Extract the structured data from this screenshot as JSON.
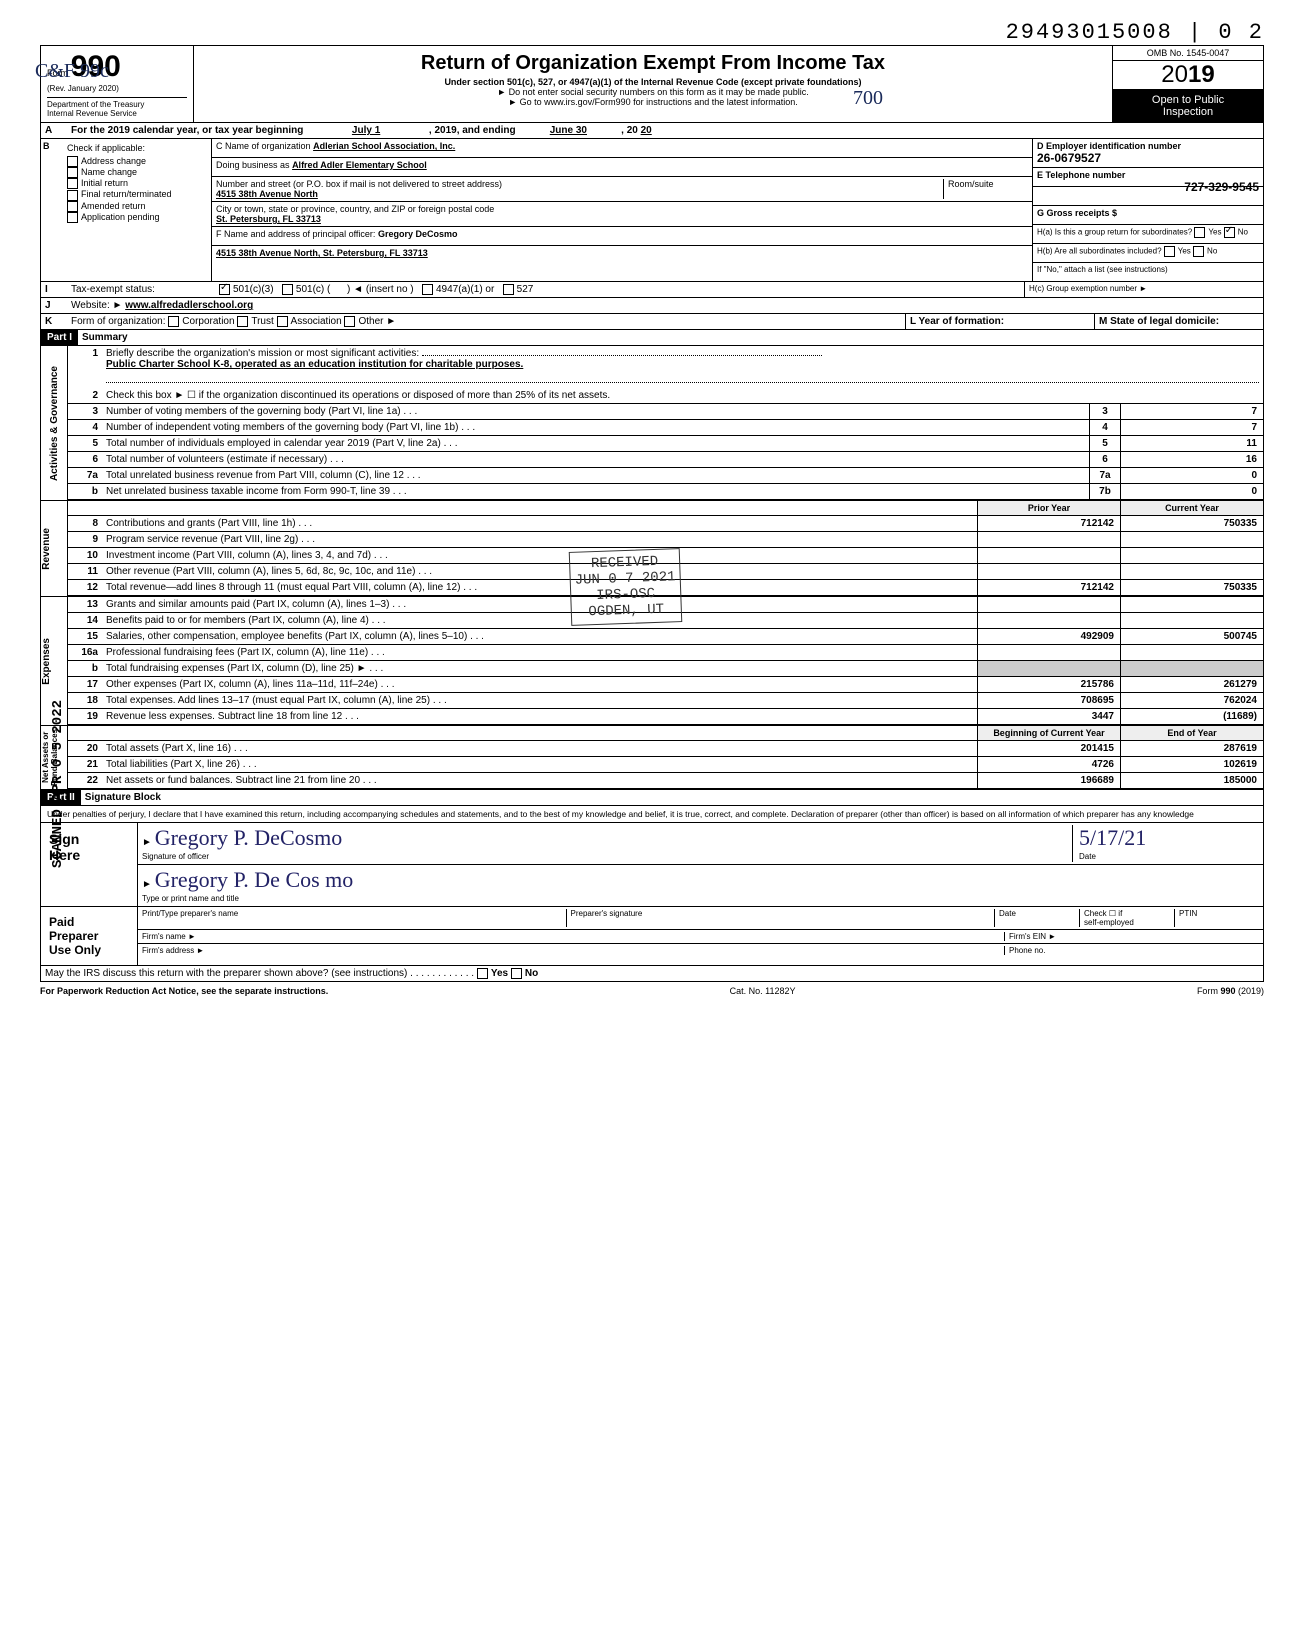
{
  "top_sequence": "29493015008 | 0  2",
  "margin_stamp": "SCANNED APR 0 5 2022",
  "handwritten_top_left": "C&F 99c",
  "form": {
    "number": "990",
    "prefix": "Form",
    "rev": "(Rev. January 2020)",
    "dept": "Department of the Treasury\nInternal Revenue Service",
    "title": "Return of Organization Exempt From Income Tax",
    "subtitle": "Under section 501(c), 527, or 4947(a)(1) of the Internal Revenue Code (except private foundations)",
    "note1": "► Do not enter social security numbers on this form as it may be made public.",
    "note2": "► Go to www.irs.gov/Form990 for instructions and the latest information.",
    "omb": "OMB No. 1545-0047",
    "year_prefix": "20",
    "year": "19",
    "open": "Open to Public\nInspection",
    "handwritten_note": "700"
  },
  "line_a": {
    "label": "For the 2019 calendar year, or tax year beginning",
    "begin": "July 1",
    "mid": ", 2019, and ending",
    "end": "June 30",
    "end2": ", 20",
    "end_year": "20"
  },
  "section_b": {
    "header": "Check if applicable:",
    "items": [
      "Address change",
      "Name change",
      "Initial return",
      "Final return/terminated",
      "Amended return",
      "Application pending"
    ]
  },
  "section_c": {
    "name_label": "C Name of organization",
    "name": "Adlerian School Association, Inc.",
    "dba_label": "Doing business as",
    "dba": "Alfred Adler Elementary School",
    "street_label": "Number and street (or P.O. box if mail is not delivered to street address)",
    "street": "4515 38th Avenue North",
    "room_label": "Room/suite",
    "city_label": "City or town, state or province, country, and ZIP or foreign postal code",
    "city": "St. Petersburg, FL 33713",
    "f_label": "F Name and address of principal officer:",
    "f_name": "Gregory DeCosmo",
    "f_addr": "4515 38th Avenue North, St. Petersburg, FL 33713"
  },
  "section_d": {
    "label": "D Employer identification number",
    "value": "26-0679527"
  },
  "section_e": {
    "label": "E Telephone number",
    "value": "727-329-9545"
  },
  "section_g": {
    "label": "G Gross receipts $"
  },
  "section_h": {
    "a": "H(a) Is this a group return for subordinates?",
    "b": "H(b) Are all subordinates included?",
    "yes": "Yes",
    "no": "No",
    "note": "If \"No,\" attach a list (see instructions)",
    "c": "H(c) Group exemption number ►"
  },
  "section_i": {
    "label": "Tax-exempt status:",
    "opt1": "501(c)(3)",
    "opt2": "501(c) (",
    "insert": ") ◄ (insert no )",
    "opt3": "4947(a)(1) or",
    "opt4": "527"
  },
  "section_j": {
    "label": "Website: ►",
    "value": "www.alfredadlerschool.org"
  },
  "section_k": {
    "label": "Form of organization:",
    "opts": [
      "Corporation",
      "Trust",
      "Association",
      "Other ►"
    ],
    "l": "L Year of formation:",
    "m": "M State of legal domicile:"
  },
  "part1": {
    "header": "Part I",
    "title": "Summary",
    "vert_labels": [
      "Activities & Governance",
      "Revenue",
      "Expenses",
      "Net Assets or\nFund Balances"
    ],
    "line1_label": "Briefly describe the organization's mission or most significant activities:",
    "line1_text": "Public Charter School K-8, operated as an education institution for charitable purposes.",
    "line2": "Check this box ► ☐ if the organization discontinued its operations or disposed of more than 25% of its net assets.",
    "rows_gov": [
      {
        "n": "3",
        "d": "Number of voting members of the governing body (Part VI, line 1a)",
        "b": "3",
        "v": "7"
      },
      {
        "n": "4",
        "d": "Number of independent voting members of the governing body (Part VI, line 1b)",
        "b": "4",
        "v": "7"
      },
      {
        "n": "5",
        "d": "Total number of individuals employed in calendar year 2019 (Part V, line 2a)",
        "b": "5",
        "v": "11"
      },
      {
        "n": "6",
        "d": "Total number of volunteers (estimate if necessary)",
        "b": "6",
        "v": "16"
      },
      {
        "n": "7a",
        "d": "Total unrelated business revenue from Part VIII, column (C), line 12",
        "b": "7a",
        "v": "0"
      },
      {
        "n": "b",
        "d": "Net unrelated business taxable income from Form 990-T, line 39",
        "b": "7b",
        "v": "0"
      }
    ],
    "stamp_received": "RECEIVED\nJUN 0 7 2021\nIRS-OSC\nOGDEN, UT",
    "col_headers": {
      "prior": "Prior Year",
      "current": "Current Year",
      "begin": "Beginning of Current Year",
      "end": "End of Year"
    },
    "rows_rev": [
      {
        "n": "8",
        "d": "Contributions and grants (Part VIII, line 1h)",
        "p": "712142",
        "c": "750335"
      },
      {
        "n": "9",
        "d": "Program service revenue (Part VIII, line 2g)",
        "p": "",
        "c": ""
      },
      {
        "n": "10",
        "d": "Investment income (Part VIII, column (A), lines 3, 4, and 7d)",
        "p": "",
        "c": ""
      },
      {
        "n": "11",
        "d": "Other revenue (Part VIII, column (A), lines 5, 6d, 8c, 9c, 10c, and 11e)",
        "p": "",
        "c": ""
      },
      {
        "n": "12",
        "d": "Total revenue—add lines 8 through 11 (must equal Part VIII, column (A), line 12)",
        "p": "712142",
        "c": "750335"
      }
    ],
    "rows_exp": [
      {
        "n": "13",
        "d": "Grants and similar amounts paid (Part IX, column (A), lines 1–3)",
        "p": "",
        "c": ""
      },
      {
        "n": "14",
        "d": "Benefits paid to or for members (Part IX, column (A), line 4)",
        "p": "",
        "c": ""
      },
      {
        "n": "15",
        "d": "Salaries, other compensation, employee benefits (Part IX, column (A), lines 5–10)",
        "p": "492909",
        "c": "500745"
      },
      {
        "n": "16a",
        "d": "Professional fundraising fees (Part IX, column (A), line 11e)",
        "p": "",
        "c": ""
      },
      {
        "n": "b",
        "d": "Total fundraising expenses (Part IX, column (D), line 25) ►",
        "p": "grey",
        "c": "grey"
      },
      {
        "n": "17",
        "d": "Other expenses (Part IX, column (A), lines 11a–11d, 11f–24e)",
        "p": "215786",
        "c": "261279"
      },
      {
        "n": "18",
        "d": "Total expenses. Add lines 13–17 (must equal Part IX, column (A), line 25)",
        "p": "708695",
        "c": "762024"
      },
      {
        "n": "19",
        "d": "Revenue less expenses. Subtract line 18 from line 12",
        "p": "3447",
        "c": "(11689)"
      }
    ],
    "rows_net": [
      {
        "n": "20",
        "d": "Total assets (Part X, line 16)",
        "p": "201415",
        "c": "287619"
      },
      {
        "n": "21",
        "d": "Total liabilities (Part X, line 26)",
        "p": "4726",
        "c": "102619"
      },
      {
        "n": "22",
        "d": "Net assets or fund balances. Subtract line 21 from line 20",
        "p": "196689",
        "c": "185000"
      }
    ]
  },
  "part2": {
    "header": "Part II",
    "title": "Signature Block",
    "penalty": "Under penalties of perjury, I declare that I have examined this return, including accompanying schedules and statements, and to the best of my knowledge and belief, it is true, correct, and complete. Declaration of preparer (other than officer) is based on all information of which preparer has any knowledge",
    "sign_here": "Sign\nHere",
    "sig_officer": "Signature of officer",
    "sig_name_label": "Type or print name and title",
    "sig_handwritten": "Gregory P. DeCosmo",
    "sig_typed": "Gregory P. De Cos mo",
    "date_label": "Date",
    "date_hand": "5/17/21",
    "paid": "Paid\nPreparer\nUse Only",
    "prep_name": "Print/Type preparer's name",
    "prep_sig": "Preparer's signature",
    "prep_date": "Date",
    "check_if": "Check ☐ if\nself-employed",
    "ptin": "PTIN",
    "firm_name": "Firm's name ►",
    "firm_ein": "Firm's EIN ►",
    "firm_addr": "Firm's address ►",
    "phone": "Phone no.",
    "may_irs": "May the IRS discuss this return with the preparer shown above? (see instructions)",
    "yes": "Yes",
    "no": "No"
  },
  "footer": {
    "left": "For Paperwork Reduction Act Notice, see the separate instructions.",
    "mid": "Cat. No. 11282Y",
    "right": "Form 990 (2019)"
  }
}
